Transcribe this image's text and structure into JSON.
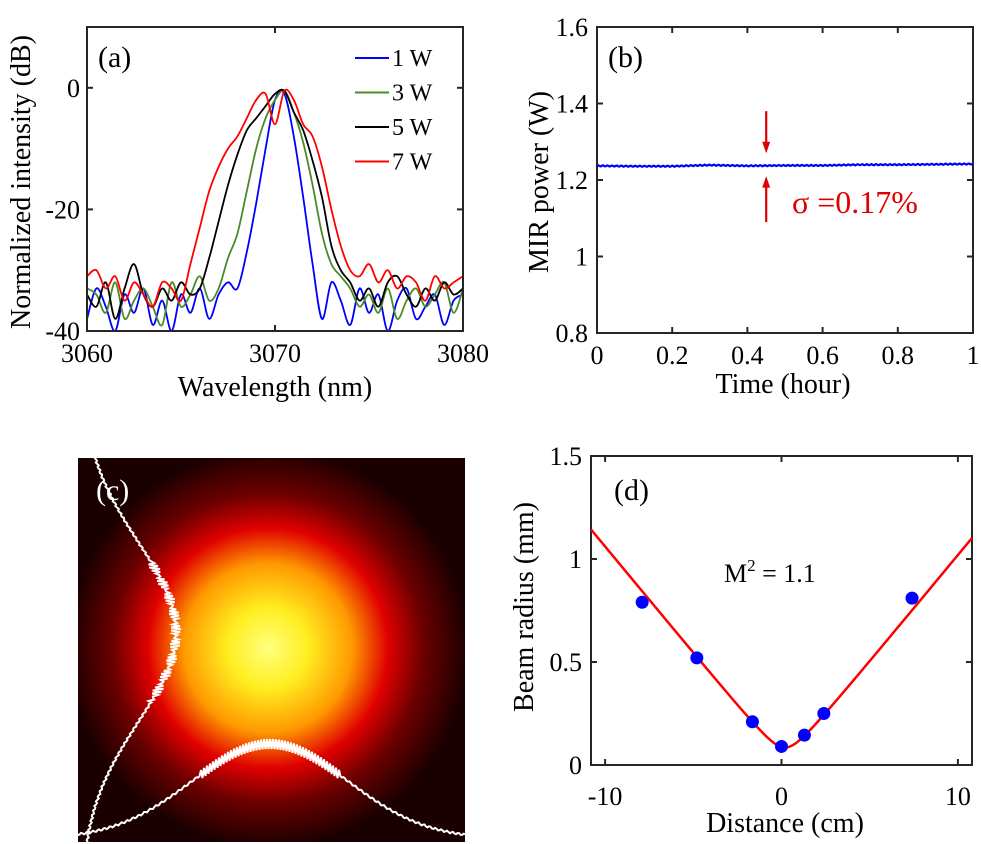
{
  "chart_data": [
    {
      "panel": "(a)",
      "type": "line",
      "xlabel": "Wavelength (nm)",
      "ylabel": "Normalized intensity (dB)",
      "xlim": [
        3060,
        3080
      ],
      "ylim": [
        -40,
        10
      ],
      "xticks": [
        3060,
        3070,
        3080
      ],
      "yticks": [
        0,
        -20,
        -40
      ],
      "legend_position": "top-right",
      "x": [
        3060,
        3060.5,
        3061,
        3061.5,
        3062,
        3062.5,
        3063,
        3063.5,
        3064,
        3064.5,
        3065,
        3065.5,
        3066,
        3066.5,
        3067,
        3067.5,
        3068,
        3068.5,
        3069,
        3069.5,
        3070,
        3070.5,
        3071,
        3071.5,
        3072,
        3072.5,
        3073,
        3073.5,
        3074,
        3074.5,
        3075,
        3075.5,
        3076,
        3076.5,
        3077,
        3077.5,
        3078,
        3078.5,
        3079,
        3079.5,
        3080
      ],
      "series": [
        {
          "name": "1 W",
          "color": "#0000ff",
          "values": [
            -38,
            -33,
            -36,
            -40,
            -34,
            -37,
            -33,
            -39,
            -35,
            -40,
            -34,
            -37,
            -33,
            -38,
            -34,
            -32,
            -33,
            -27,
            -19,
            -10,
            -2,
            -1,
            -8,
            -18,
            -29,
            -38,
            -32,
            -35,
            -39,
            -33,
            -37,
            -34,
            -40,
            -35,
            -33,
            -38,
            -36,
            -34,
            -39,
            -35,
            -34
          ]
        },
        {
          "name": "3 W",
          "color": "#4a8a2a",
          "values": [
            -33,
            -34,
            -37,
            -32,
            -38,
            -35,
            -33,
            -36,
            -39,
            -32,
            -36,
            -34,
            -31,
            -35,
            -33,
            -28,
            -24,
            -17,
            -10,
            -5,
            -2,
            -0.5,
            -4,
            -9,
            -16,
            -24,
            -29,
            -31,
            -33,
            -36,
            -34,
            -37,
            -33,
            -38,
            -35,
            -33,
            -36,
            -34,
            -32,
            -37,
            -33
          ]
        },
        {
          "name": "5 W",
          "color": "#000000",
          "values": [
            -34,
            -36,
            -32,
            -38,
            -33,
            -29,
            -34,
            -36,
            -33,
            -35,
            -32,
            -34,
            -33,
            -28,
            -22,
            -16,
            -11,
            -7,
            -5,
            -3,
            -1,
            -0.5,
            -4,
            -7,
            -12,
            -18,
            -26,
            -30,
            -32,
            -35,
            -33,
            -36,
            -32,
            -31,
            -34,
            -36,
            -33,
            -35,
            -32,
            -34,
            -33
          ]
        },
        {
          "name": "7 W",
          "color": "#ff0000",
          "values": [
            -31,
            -30,
            -33,
            -31,
            -35,
            -32,
            -34,
            -36,
            -32,
            -33,
            -35,
            -29,
            -23,
            -17,
            -13,
            -10,
            -8,
            -5,
            -2,
            -1,
            -6,
            -0.5,
            -2,
            -6,
            -8,
            -13,
            -20,
            -26,
            -30,
            -31,
            -29,
            -32,
            -30,
            -33,
            -31,
            -32,
            -35,
            -31,
            -33,
            -32,
            -31
          ]
        }
      ]
    },
    {
      "panel": "(b)",
      "type": "line",
      "xlabel": "Time (hour)",
      "ylabel": "MIR power (W)",
      "xlim": [
        0,
        1
      ],
      "ylim": [
        0.8,
        1.6
      ],
      "xticks": [
        0,
        0.2,
        0.4,
        0.6,
        0.8,
        1
      ],
      "yticks": [
        0.8,
        1,
        1.2,
        1.4,
        1.6
      ],
      "annotation": "σ =0.17%",
      "annotation_color": "#e00000",
      "series": [
        {
          "color": "#0000ff",
          "x": [
            0,
            0.1,
            0.2,
            0.3,
            0.4,
            0.5,
            0.6,
            0.7,
            0.8,
            0.9,
            1.0
          ],
          "values": [
            1.237,
            1.236,
            1.236,
            1.239,
            1.237,
            1.238,
            1.238,
            1.24,
            1.24,
            1.241,
            1.242
          ]
        }
      ]
    },
    {
      "panel": "(c)",
      "type": "heatmap",
      "colormap": "hot"
    },
    {
      "panel": "(d)",
      "type": "scatter",
      "xlabel": "Distance (cm)",
      "ylabel": "Beam radius (mm)",
      "xlim": [
        -10.8,
        10.8
      ],
      "ylim": [
        0,
        1.5
      ],
      "xticks": [
        -10,
        0,
        10
      ],
      "yticks": [
        0,
        0.5,
        1,
        1.5
      ],
      "annotation": {
        "base": "M",
        "sup": "2",
        "rest": " = 1.1"
      },
      "points": {
        "color": "#0000ff",
        "x": [
          -7.9,
          -4.8,
          -1.65,
          0,
          1.3,
          2.4,
          7.4
        ],
        "y": [
          0.79,
          0.52,
          0.21,
          0.09,
          0.145,
          0.25,
          0.81
        ]
      },
      "fit": {
        "color": "#ff0000",
        "w0": 0.085,
        "z0": 0.2,
        "zr": 0.82
      }
    }
  ]
}
